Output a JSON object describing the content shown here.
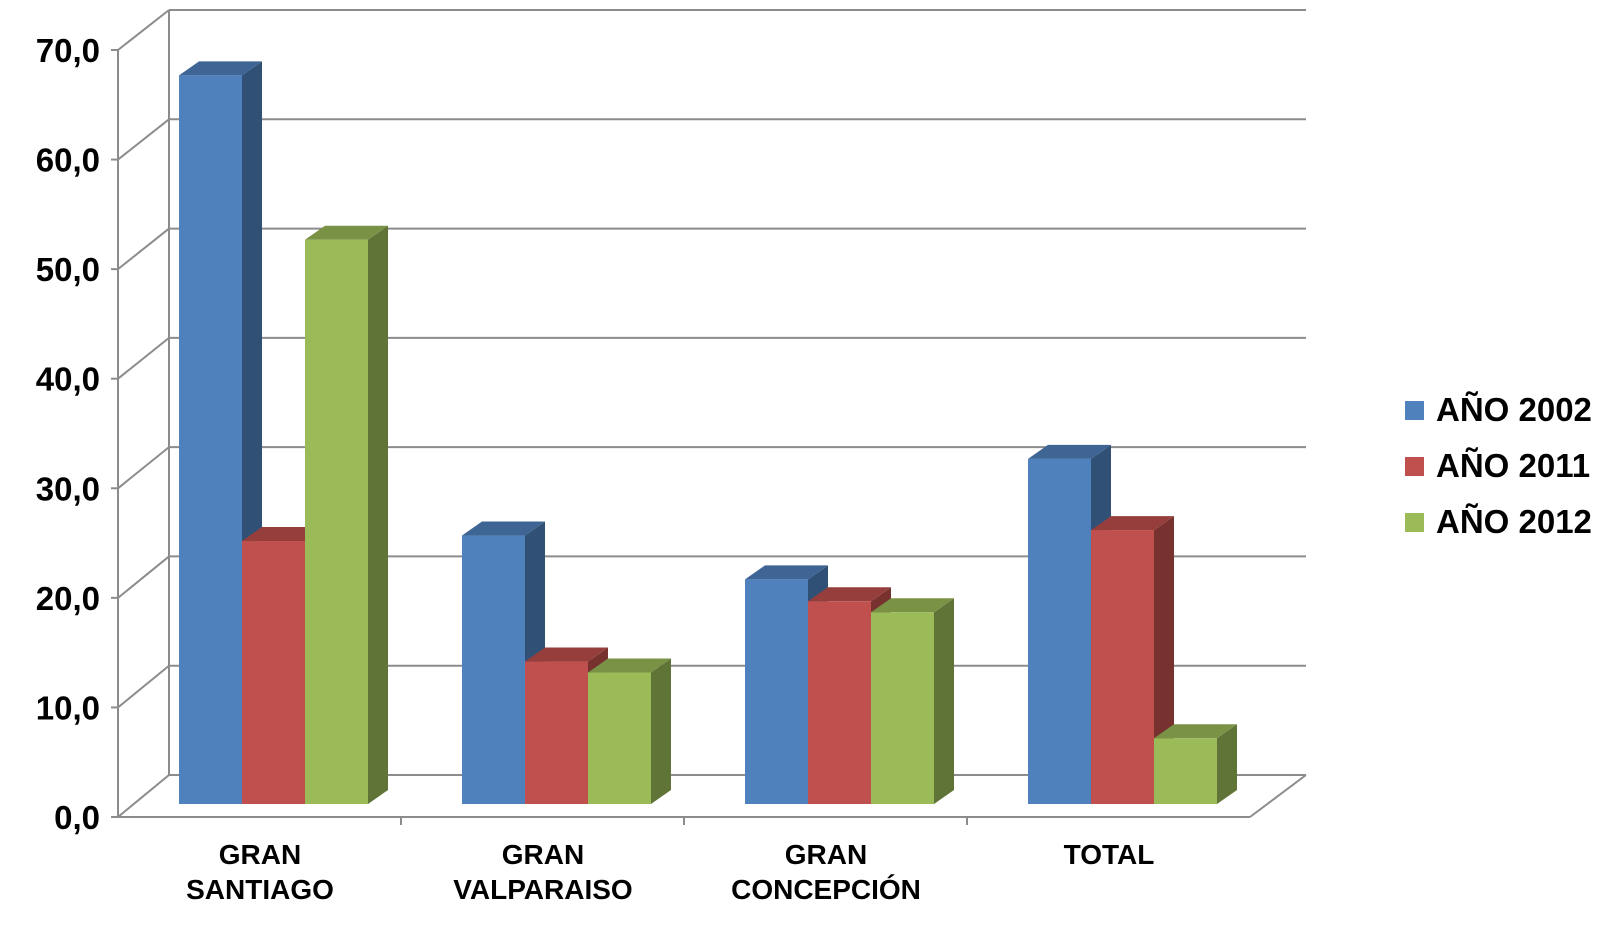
{
  "chart_data": {
    "type": "bar",
    "categories": [
      [
        "GRAN",
        "SANTIAGO"
      ],
      [
        "GRAN",
        "VALPARAISO"
      ],
      [
        "GRAN",
        "CONCEPCIÓN"
      ],
      [
        "TOTAL"
      ]
    ],
    "series": [
      {
        "name": "AÑO 2002",
        "color": "#4F81BD",
        "values": [
          66.5,
          24.5,
          20.5,
          31.5
        ]
      },
      {
        "name": "AÑO 2011",
        "color": "#C0504D",
        "values": [
          24.0,
          13.0,
          18.5,
          25.0
        ]
      },
      {
        "name": "AÑO 2012",
        "color": "#9BBB59",
        "values": [
          51.5,
          12.0,
          17.5,
          6.0
        ]
      }
    ],
    "ylim": [
      0,
      70
    ],
    "yticks": [
      "0,0",
      "10,0",
      "20,0",
      "30,0",
      "40,0",
      "50,0",
      "60,0",
      "70,0"
    ],
    "grid": true,
    "legend": "right",
    "style": "3d-clustered-column"
  }
}
